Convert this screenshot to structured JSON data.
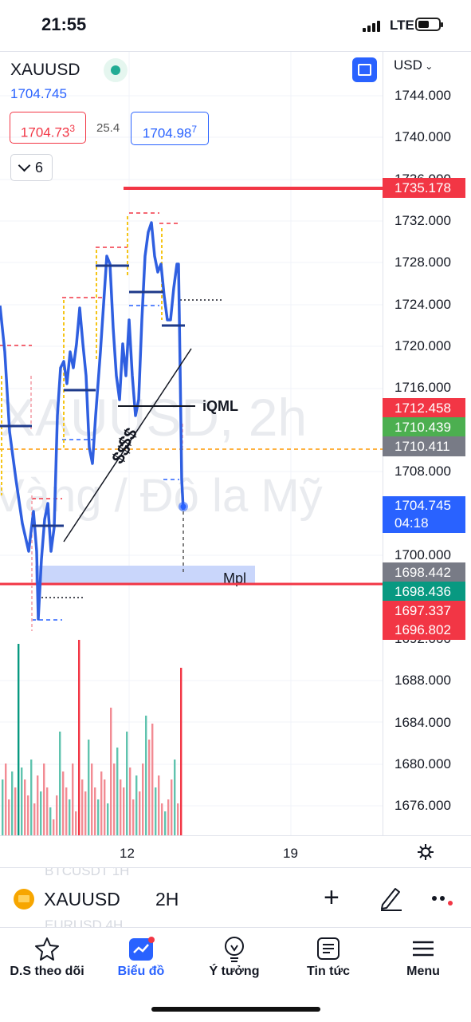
{
  "status_bar": {
    "time": "21:55",
    "network": "LTE"
  },
  "header": {
    "symbol": "XAUUSD",
    "last_price": "1704.745",
    "bid_main": "1704.73",
    "bid_sup": "3",
    "spread": "25.4",
    "ask_main": "1704.98",
    "ask_sup": "7",
    "indicator_count": "6",
    "currency": "USD"
  },
  "watermark": {
    "line1": "XAUUSD, 2h",
    "line2": "Vàng / Đô la Mỹ"
  },
  "annotations": {
    "iqml": "iQML",
    "mpl": "Mpl",
    "dollar": "$$"
  },
  "price_scale": {
    "labels": [
      "1744.000",
      "1740.000",
      "1736.000",
      "1732.000",
      "1728.000",
      "1724.000",
      "1720.000",
      "1716.000",
      "1708.000",
      "1700.000",
      "1692.000",
      "1688.000",
      "1684.000",
      "1680.000",
      "1676.000"
    ],
    "badges": [
      {
        "text": "1735.178",
        "color": "#f23645"
      },
      {
        "text": "1712.458",
        "color": "#f23645"
      },
      {
        "text": "1710.439",
        "color": "#4caf50"
      },
      {
        "text": "1710.411",
        "color": "#787b86"
      },
      {
        "text": "1698.442",
        "color": "#787b86"
      },
      {
        "text": "1698.436",
        "color": "#089981"
      },
      {
        "text": "1697.337",
        "color": "#f23645"
      },
      {
        "text": "1696.802",
        "color": "#f23645"
      }
    ],
    "live_badge": {
      "price": "1704.745",
      "countdown": "04:18",
      "color": "#2962ff"
    }
  },
  "time_axis": {
    "labels": [
      "12",
      "19"
    ]
  },
  "symbol_bar": {
    "symbol": "XAUUSD",
    "timeframe": "2H",
    "ghost_top": "BTCUSDT 1H",
    "ghost_bottom": "EURUSD 4H"
  },
  "tabs": [
    {
      "label": "D.S theo dõi",
      "icon": "star-icon"
    },
    {
      "label": "Biểu đồ",
      "icon": "chart-icon"
    },
    {
      "label": "Ý tưởng",
      "icon": "lightbulb-icon"
    },
    {
      "label": "Tin tức",
      "icon": "news-icon"
    },
    {
      "label": "Menu",
      "icon": "menu-icon"
    }
  ],
  "colors": {
    "accent": "#2962ff",
    "down": "#f23645",
    "up": "#089981",
    "line": "#2f5fe0"
  }
}
